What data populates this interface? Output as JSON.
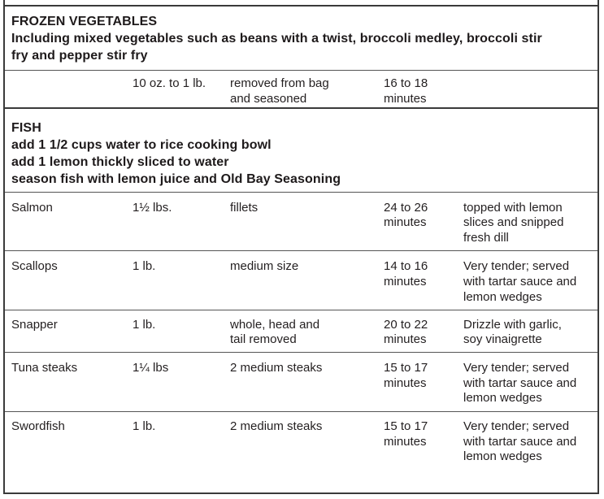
{
  "frozen": {
    "title": "FROZEN VEGETABLES",
    "subtitle_line1": "Including mixed vegetables such as beans with a twist, broccoli medley, broccoli stir",
    "subtitle_line2": "fry and pepper stir fry",
    "row": {
      "quantity": "10 oz. to  1 lb.",
      "prep_line1": "removed from bag",
      "prep_line2": "and seasoned",
      "time_line1": "16 to 18",
      "time_line2": "minutes"
    }
  },
  "fish": {
    "title": "FISH",
    "instructions": [
      "add 1 1/2 cups water to rice cooking bowl",
      "add 1 lemon thickly sliced to water",
      "season fish with lemon juice and Old Bay Seasoning"
    ],
    "rows": [
      {
        "name": "Salmon",
        "quantity": "1½ lbs.",
        "prep_line1": "fillets",
        "prep_line2": "",
        "time_line1": "24 to 26",
        "time_line2": "minutes",
        "note_line1": "topped with lemon",
        "note_line2": "slices and snipped",
        "note_line3": "fresh dill"
      },
      {
        "name": "Scallops",
        "quantity": "1 lb.",
        "prep_line1": "medium size",
        "prep_line2": "",
        "time_line1": "14 to 16",
        "time_line2": "minutes",
        "note_line1": "Very tender; served",
        "note_line2": "with tartar sauce and",
        "note_line3": "lemon wedges"
      },
      {
        "name": "Snapper",
        "quantity": "1 lb.",
        "prep_line1": "whole, head and",
        "prep_line2": "tail removed",
        "time_line1": "20 to 22",
        "time_line2": "minutes",
        "note_line1": "Drizzle with garlic,",
        "note_line2": "soy vinaigrette",
        "note_line3": ""
      },
      {
        "name": "Tuna steaks",
        "quantity": "1¼ lbs",
        "prep_line1": "2 medium steaks",
        "prep_line2": "",
        "time_line1": "15 to 17",
        "time_line2": "minutes",
        "note_line1": "Very tender; served",
        "note_line2": "with tartar sauce and",
        "note_line3": "lemon wedges"
      },
      {
        "name": "Swordfish",
        "quantity": "1 lb.",
        "prep_line1": "2 medium steaks",
        "prep_line2": "",
        "time_line1": "15 to 17",
        "time_line2": "minutes",
        "note_line1": "Very tender; served",
        "note_line2": "with tartar sauce and",
        "note_line3": "lemon wedges"
      }
    ]
  }
}
